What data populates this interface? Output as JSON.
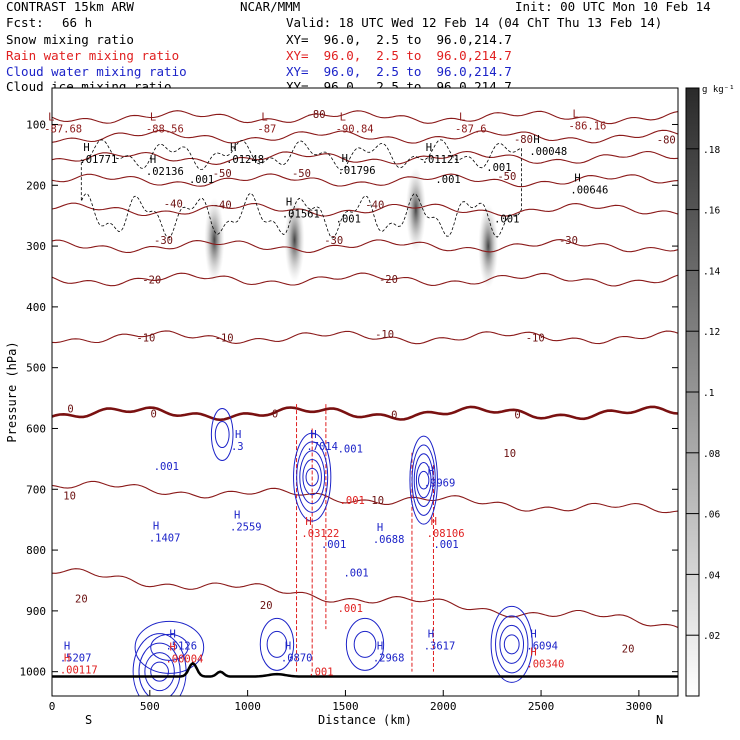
{
  "header": {
    "model": "CONTRAST 15km ARW",
    "center": "NCAR/MMM",
    "init": "Init: 00 UTC Mon 10 Feb 14",
    "fcst_label": "Fcst:",
    "fcst_value": "66 h",
    "valid": "Valid: 18 UTC Wed 12 Feb 14 (04 ChT Thu 13 Feb 14)"
  },
  "fields": [
    {
      "label": "Snow mixing ratio",
      "xy": "XY=  96.0,  2.5 to  96.0,214.7",
      "color": "#000000"
    },
    {
      "label": "Rain water mixing ratio",
      "xy": "XY=  96.0,  2.5 to  96.0,214.7",
      "color": "#e02020"
    },
    {
      "label": "Cloud water mixing ratio",
      "xy": "XY=  96.0,  2.5 to  96.0,214.7",
      "color": "#1c23c8"
    },
    {
      "label": "Cloud ice mixing ratio",
      "xy": "XY=  96.0,  2.5 to  96.0,214.7",
      "color": "#000000"
    }
  ],
  "chart_data": {
    "type": "cross-section",
    "xlabel": "Distance (km)",
    "ylabel": "Pressure (hPa)",
    "xlim": [
      0,
      3200
    ],
    "ylim": [
      1040,
      40
    ],
    "x_ticks": [
      0,
      500,
      1000,
      1500,
      2000,
      2500,
      3000
    ],
    "y_ticks": [
      100,
      200,
      300,
      400,
      500,
      600,
      700,
      800,
      900,
      1000
    ],
    "left_end": "S",
    "right_end": "N",
    "colorbar": {
      "unit": "g kg⁻¹",
      "ticks": [
        ".02",
        ".04",
        ".06",
        ".08",
        ".1",
        ".12",
        ".14",
        ".16",
        ".18"
      ],
      "values": [
        0.02,
        0.04,
        0.06,
        0.08,
        0.1,
        0.12,
        0.14,
        0.16,
        0.18
      ],
      "min": 0,
      "max": 0.2
    },
    "temperature_contours": [
      {
        "value": -80,
        "p": 88
      },
      {
        "value": -70,
        "p": 120
      },
      {
        "value": -60,
        "p": 155
      },
      {
        "value": -50,
        "p": 192
      },
      {
        "value": -40,
        "p": 240
      },
      {
        "value": -30,
        "p": 300
      },
      {
        "value": -20,
        "p": 355
      },
      {
        "value": -10,
        "p": 450
      },
      {
        "value": 0,
        "p": 575
      },
      {
        "value": 10,
        "p": 715
      },
      {
        "value": 20,
        "p": 880
      }
    ],
    "temperature_labels": [
      {
        "text": "-80",
        "x": 1350,
        "p": 83
      },
      {
        "text": "-80",
        "x": 3140,
        "p": 125
      },
      {
        "text": "-80",
        "x": 2410,
        "p": 124
      },
      {
        "text": "-50",
        "x": 870,
        "p": 180
      },
      {
        "text": "-50",
        "x": 1275,
        "p": 180
      },
      {
        "text": "-50",
        "x": 2325,
        "p": 185
      },
      {
        "text": "-40",
        "x": 620,
        "p": 230
      },
      {
        "text": "-40",
        "x": 870,
        "p": 232
      },
      {
        "text": "-40",
        "x": 1650,
        "p": 232
      },
      {
        "text": "-30",
        "x": 570,
        "p": 290
      },
      {
        "text": "-30",
        "x": 1440,
        "p": 290
      },
      {
        "text": "-30",
        "x": 2640,
        "p": 290
      },
      {
        "text": "-20",
        "x": 510,
        "p": 355
      },
      {
        "text": "-20",
        "x": 1720,
        "p": 354
      },
      {
        "text": "-10",
        "x": 480,
        "p": 450
      },
      {
        "text": "-10",
        "x": 880,
        "p": 450
      },
      {
        "text": "-10",
        "x": 1700,
        "p": 445
      },
      {
        "text": "-10",
        "x": 2470,
        "p": 450
      },
      {
        "text": "0",
        "x": 95,
        "p": 567
      },
      {
        "text": "0",
        "x": 520,
        "p": 575
      },
      {
        "text": "0",
        "x": 1140,
        "p": 575
      },
      {
        "text": "0",
        "x": 1750,
        "p": 577
      },
      {
        "text": "0",
        "x": 2380,
        "p": 577
      },
      {
        "text": "10",
        "x": 90,
        "p": 710
      },
      {
        "text": "10",
        "x": 1665,
        "p": 718
      },
      {
        "text": "10",
        "x": 2340,
        "p": 640
      },
      {
        "text": "20",
        "x": 150,
        "p": 880
      },
      {
        "text": "20",
        "x": 1095,
        "p": 890
      },
      {
        "text": "20",
        "x": 2945,
        "p": 962
      }
    ],
    "extrema": [
      {
        "kind": "L",
        "text": "-87.68",
        "x": -40,
        "p": 100,
        "color": "#8b1a1a"
      },
      {
        "kind": "L",
        "text": "-88.56",
        "x": 480,
        "p": 100,
        "color": "#8b1a1a"
      },
      {
        "kind": "L",
        "text": "-87",
        "x": 1050,
        "p": 100,
        "color": "#8b1a1a"
      },
      {
        "kind": "L",
        "text": "-90.84",
        "x": 1450,
        "p": 100,
        "color": "#8b1a1a"
      },
      {
        "kind": "L",
        "text": "-87.6",
        "x": 2060,
        "p": 100,
        "color": "#8b1a1a"
      },
      {
        "kind": "L",
        "text": "-86.16",
        "x": 2640,
        "p": 95,
        "color": "#8b1a1a"
      },
      {
        "kind": "H",
        "text": ".01771",
        "x": 140,
        "p": 150,
        "color": "#000000"
      },
      {
        "kind": "H",
        "text": ".02136",
        "x": 480,
        "p": 170,
        "color": "#000000"
      },
      {
        "kind": "H",
        "text": ".01248",
        "x": 890,
        "p": 150,
        "color": "#000000"
      },
      {
        "kind": "H",
        "text": ".01796",
        "x": 1460,
        "p": 168,
        "color": "#000000"
      },
      {
        "kind": "H",
        "text": ".01121",
        "x": 1890,
        "p": 150,
        "color": "#000000"
      },
      {
        "kind": "H",
        "text": ".00048",
        "x": 2440,
        "p": 137,
        "color": "#000000"
      },
      {
        "kind": "H",
        "text": ".00646",
        "x": 2650,
        "p": 200,
        "color": "#000000"
      },
      {
        "kind": "H",
        "text": ".01561",
        "x": 1175,
        "p": 240,
        "color": "#000000"
      },
      {
        "kind": "H",
        "text": ".3",
        "x": 915,
        "p": 622,
        "color": "#1c23c8"
      },
      {
        "kind": "H",
        "text": ".7014",
        "x": 1300,
        "p": 622,
        "color": "#1c23c8"
      },
      {
        "kind": "H",
        "text": ".2559",
        "x": 910,
        "p": 755,
        "color": "#1c23c8"
      },
      {
        "kind": "H",
        "text": ".1407",
        "x": 495,
        "p": 773,
        "color": "#1c23c8"
      },
      {
        "kind": "H",
        "text": ".9969",
        "x": 1900,
        "p": 682,
        "color": "#1c23c8"
      },
      {
        "kind": "H",
        "text": ".0688",
        "x": 1640,
        "p": 775,
        "color": "#1c23c8"
      },
      {
        "kind": "H",
        "text": ".5207",
        "x": 40,
        "p": 970,
        "color": "#1c23c8"
      },
      {
        "kind": "H",
        "text": ".5126",
        "x": 580,
        "p": 950,
        "color": "#1c23c8"
      },
      {
        "kind": "H",
        "text": ".0870",
        "x": 1170,
        "p": 970,
        "color": "#1c23c8"
      },
      {
        "kind": "H",
        "text": ".2968",
        "x": 1640,
        "p": 970,
        "color": "#1c23c8"
      },
      {
        "kind": "H",
        "text": ".3617",
        "x": 1900,
        "p": 950,
        "color": "#1c23c8"
      },
      {
        "kind": "H",
        "text": ".6094",
        "x": 2425,
        "p": 950,
        "color": "#1c23c8"
      },
      {
        "kind": "H",
        "text": ".03122",
        "x": 1275,
        "p": 765,
        "color": "#e02020"
      },
      {
        "kind": "H",
        "text": ".08106",
        "x": 1915,
        "p": 765,
        "color": "#e02020"
      },
      {
        "kind": "H",
        "text": ".00117",
        "x": 40,
        "p": 990,
        "color": "#e02020"
      },
      {
        "kind": "H",
        "text": ".00004",
        "x": 580,
        "p": 972,
        "color": "#e02020"
      },
      {
        "kind": "H",
        "text": ".00340",
        "x": 2425,
        "p": 980,
        "color": "#e02020"
      }
    ],
    "small_labels": [
      {
        "text": ".001",
        "x": 700,
        "p": 190,
        "color": "#000000"
      },
      {
        "text": ".001",
        "x": 1450,
        "p": 255,
        "color": "#000000"
      },
      {
        "text": ".001",
        "x": 1960,
        "p": 190,
        "color": "#000000"
      },
      {
        "text": ".001",
        "x": 2220,
        "p": 170,
        "color": "#000000"
      },
      {
        "text": ".001",
        "x": 2260,
        "p": 255,
        "color": "#000000"
      },
      {
        "text": ".001",
        "x": 520,
        "p": 662,
        "color": "#1c23c8"
      },
      {
        "text": ".001",
        "x": 1460,
        "p": 633,
        "color": "#1c23c8"
      },
      {
        "text": ".001",
        "x": 1375,
        "p": 790,
        "color": "#1c23c8"
      },
      {
        "text": ".001",
        "x": 1490,
        "p": 837,
        "color": "#1c23c8"
      },
      {
        "text": ".001",
        "x": 1950,
        "p": 790,
        "color": "#1c23c8"
      },
      {
        "text": ".001",
        "x": 1470,
        "p": 718,
        "color": "#e02020"
      },
      {
        "text": ".001",
        "x": 1460,
        "p": 895,
        "color": "#e02020"
      },
      {
        "text": ".001",
        "x": 1310,
        "p": 1000,
        "color": "#e02020"
      }
    ],
    "snow_maxima": [
      {
        "x": 830,
        "p": 290,
        "amp": 0.07
      },
      {
        "x": 1240,
        "p": 290,
        "amp": 0.06
      },
      {
        "x": 1860,
        "p": 240,
        "amp": 0.18
      },
      {
        "x": 2230,
        "p": 300,
        "amp": 0.12
      }
    ]
  }
}
